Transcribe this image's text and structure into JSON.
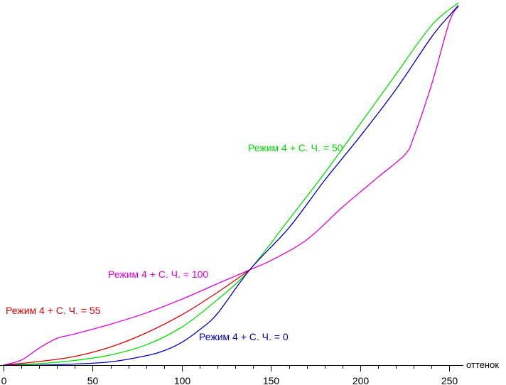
{
  "chart_data": {
    "type": "line",
    "xlabel": "оттенок",
    "xlim": [
      0,
      255
    ],
    "ylim": [
      0,
      1
    ],
    "grid": false,
    "x_ticks": [
      0,
      50,
      100,
      150,
      200,
      250
    ],
    "x_tick_labels": [
      "0",
      "50",
      "100",
      "150",
      "200",
      "250"
    ],
    "series": [
      {
        "name": "Режим 4 + С. Ч. = 50",
        "color": "#00dd00",
        "x": [
          0,
          20,
          40,
          60,
          80,
          100,
          120,
          138,
          160,
          180,
          200,
          220,
          240,
          255
        ],
        "y": [
          0.0,
          0.004,
          0.013,
          0.028,
          0.056,
          0.105,
          0.181,
          0.263,
          0.402,
          0.53,
          0.666,
          0.803,
          0.938,
          1.0
        ]
      },
      {
        "name": "Режим 4 + С. Ч. = 100",
        "color": "#dd00dd",
        "x": [
          0,
          10,
          20,
          30,
          40,
          60,
          80,
          100,
          120,
          138,
          150,
          170,
          190,
          210,
          225,
          230,
          240,
          250,
          255
        ],
        "y": [
          0.0,
          0.014,
          0.047,
          0.074,
          0.086,
          0.113,
          0.144,
          0.182,
          0.225,
          0.263,
          0.289,
          0.346,
          0.436,
          0.519,
          0.581,
          0.63,
          0.775,
          0.948,
          0.99
        ]
      },
      {
        "name": "Режим 4 + С. Ч. = 55",
        "color": "#dd0000",
        "x": [
          0,
          20,
          40,
          60,
          80,
          100,
          120,
          138
        ],
        "y": [
          0.0,
          0.01,
          0.024,
          0.05,
          0.089,
          0.139,
          0.201,
          0.263
        ]
      },
      {
        "name": "Режим 4 + С. Ч. = 0",
        "color": "#0000bb",
        "x": [
          0,
          20,
          40,
          60,
          80,
          90,
          100,
          110,
          120,
          138,
          160,
          180,
          200,
          220,
          240,
          250,
          255
        ],
        "y": [
          0.0,
          0.0,
          0.003,
          0.009,
          0.026,
          0.04,
          0.063,
          0.098,
          0.143,
          0.263,
          0.379,
          0.51,
          0.632,
          0.761,
          0.906,
          0.965,
          0.993
        ]
      }
    ]
  }
}
